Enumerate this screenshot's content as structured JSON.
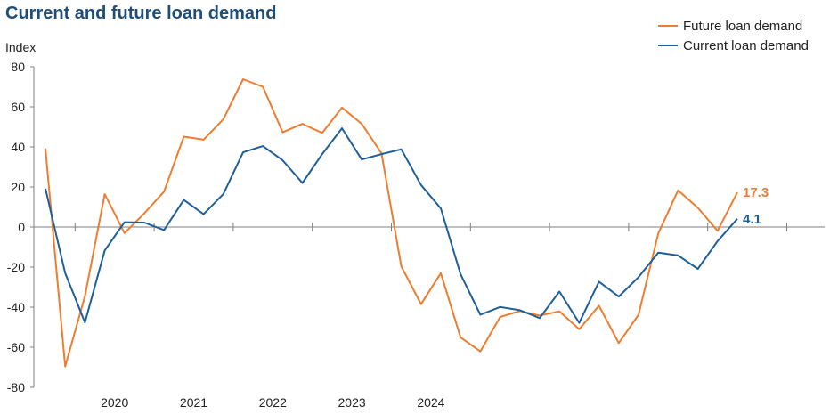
{
  "chart_data": {
    "type": "line",
    "title": "Current and future loan demand",
    "ylabel": "Index",
    "ylim": [
      -80,
      80
    ],
    "yticks": [
      80,
      60,
      40,
      20,
      0,
      -20,
      -40,
      -60,
      -80
    ],
    "year_labels": [
      "2020",
      "2021",
      "2022",
      "2023",
      "2024"
    ],
    "x_unit": "quarter index (0 = 2019 Q3)",
    "grid": false,
    "legend_position": "top-right",
    "series": [
      {
        "name": "Future loan demand",
        "color": "#ed7d31",
        "end_label": "17.3",
        "values": [
          39.3,
          -69.6,
          -34.5,
          16.4,
          -3.0,
          6.8,
          17.7,
          45.1,
          43.6,
          53.8,
          73.8,
          70.0,
          47.3,
          51.5,
          47.0,
          59.6,
          51.5,
          36.8,
          -19.6,
          -38.5,
          -23.0,
          -55.1,
          -62.1,
          -44.9,
          -41.9,
          -44.2,
          -42.1,
          -51.0,
          -39.3,
          -57.9,
          -43.8,
          -3.2,
          18.3,
          9.6,
          -1.9,
          17.3
        ]
      },
      {
        "name": "Current loan demand",
        "color": "#1f5f99",
        "end_label": "4.1",
        "values": [
          19.2,
          -23.0,
          -47.6,
          -11.7,
          2.4,
          2.2,
          -1.5,
          13.5,
          6.4,
          16.5,
          37.3,
          40.4,
          33.3,
          22.0,
          36.4,
          49.3,
          33.7,
          36.4,
          38.8,
          21.0,
          9.3,
          -23.6,
          -43.8,
          -39.9,
          -41.5,
          -45.4,
          -32.2,
          -47.8,
          -27.3,
          -34.7,
          -25.0,
          -12.8,
          -14.2,
          -20.9,
          -7.0,
          4.1
        ]
      }
    ]
  }
}
